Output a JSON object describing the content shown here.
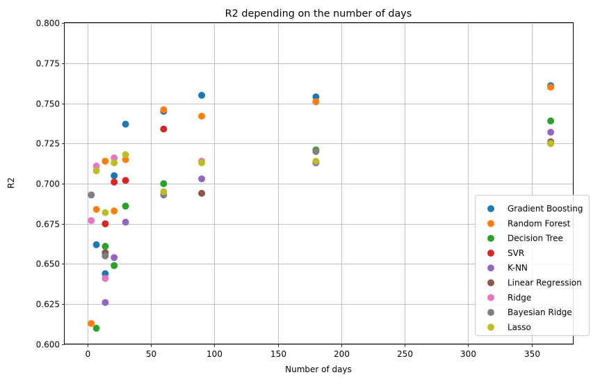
{
  "chart_data": {
    "type": "scatter",
    "title": "R2 depending on the number of days",
    "xlabel": "Number of days",
    "ylabel": "R2",
    "xlim": [
      -18,
      383
    ],
    "ylim": [
      0.6,
      0.8
    ],
    "xticks": [
      0,
      50,
      100,
      150,
      200,
      250,
      300,
      350
    ],
    "xtick_labels": [
      "0",
      "50",
      "100",
      "150",
      "200",
      "250",
      "300",
      "350"
    ],
    "yticks": [
      0.6,
      0.625,
      0.65,
      0.675,
      0.7,
      0.725,
      0.75,
      0.775,
      0.8
    ],
    "ytick_labels": [
      "0.600",
      "0.625",
      "0.650",
      "0.675",
      "0.700",
      "0.725",
      "0.750",
      "0.775",
      "0.800"
    ],
    "grid": true,
    "legend_position": "bottom-right",
    "series": [
      {
        "name": "Gradient Boosting",
        "color": "#1f77b4",
        "points": [
          [
            7,
            0.662
          ],
          [
            14,
            0.644
          ],
          [
            21,
            0.705
          ],
          [
            30,
            0.737
          ],
          [
            60,
            0.745
          ],
          [
            90,
            0.755
          ],
          [
            180,
            0.754
          ],
          [
            365,
            0.761
          ]
        ]
      },
      {
        "name": "Random Forest",
        "color": "#ff7f0e",
        "points": [
          [
            3,
            0.613
          ],
          [
            7,
            0.684
          ],
          [
            14,
            0.714
          ],
          [
            21,
            0.683
          ],
          [
            30,
            0.715
          ],
          [
            60,
            0.746
          ],
          [
            90,
            0.742
          ],
          [
            180,
            0.751
          ],
          [
            365,
            0.76
          ]
        ]
      },
      {
        "name": "Decision Tree",
        "color": "#2ca02c",
        "points": [
          [
            7,
            0.61
          ],
          [
            14,
            0.661
          ],
          [
            21,
            0.649
          ],
          [
            30,
            0.686
          ],
          [
            60,
            0.7
          ],
          [
            180,
            0.721
          ],
          [
            365,
            0.739
          ]
        ]
      },
      {
        "name": "SVR",
        "color": "#d62728",
        "points": [
          [
            14,
            0.675
          ],
          [
            21,
            0.701
          ],
          [
            30,
            0.702
          ],
          [
            60,
            0.734
          ]
        ]
      },
      {
        "name": "K-NN",
        "color": "#9467bd",
        "points": [
          [
            14,
            0.626
          ],
          [
            21,
            0.654
          ],
          [
            30,
            0.676
          ],
          [
            90,
            0.703
          ],
          [
            180,
            0.713
          ],
          [
            365,
            0.732
          ]
        ]
      },
      {
        "name": "Linear Regression",
        "color": "#8c564b",
        "points": [
          [
            14,
            0.657
          ],
          [
            90,
            0.694
          ],
          [
            365,
            0.726
          ]
        ]
      },
      {
        "name": "Ridge",
        "color": "#e377c2",
        "points": [
          [
            3,
            0.677
          ],
          [
            7,
            0.711
          ],
          [
            14,
            0.641
          ],
          [
            21,
            0.716
          ],
          [
            90,
            0.714
          ]
        ]
      },
      {
        "name": "Bayesian Ridge",
        "color": "#7f7f7f",
        "points": [
          [
            3,
            0.693
          ],
          [
            14,
            0.655
          ],
          [
            60,
            0.693
          ],
          [
            180,
            0.72
          ],
          [
            365,
            0.725
          ]
        ]
      },
      {
        "name": "Lasso",
        "color": "#bcbd22",
        "points": [
          [
            7,
            0.708
          ],
          [
            14,
            0.682
          ],
          [
            21,
            0.713
          ],
          [
            30,
            0.718
          ],
          [
            60,
            0.695
          ],
          [
            90,
            0.713
          ],
          [
            180,
            0.714
          ],
          [
            365,
            0.725
          ]
        ]
      }
    ]
  }
}
